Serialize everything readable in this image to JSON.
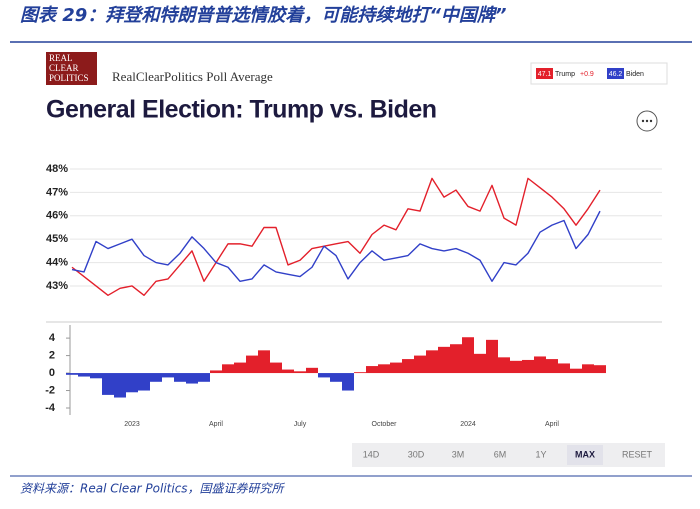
{
  "header": {
    "title": "图表 29：拜登和特朗普普选情胶着，可能持续地打“中国牌”"
  },
  "widget": {
    "logo": [
      "REAL",
      "CLEAR",
      "POLITICS"
    ],
    "label": "RealClearPolitics Poll Average",
    "buttons": [
      "14D",
      "30D",
      "3M",
      "6M",
      "1Y",
      "MAX",
      "RESET"
    ],
    "selected_button": 5
  },
  "chart_data": [
    {
      "type": "line",
      "title": "General Election: Trump vs. Biden",
      "ylim": [
        42.4,
        48.3
      ],
      "yticks": [
        {
          "value": 43,
          "label": "43%"
        },
        {
          "value": 44,
          "label": "44%"
        },
        {
          "value": 45,
          "label": "45%"
        },
        {
          "value": 46,
          "label": "46%"
        },
        {
          "value": 47,
          "label": "47%"
        },
        {
          "value": 48,
          "label": "48%"
        }
      ],
      "grid": true,
      "series": [
        {
          "name": "Trump",
          "color": "#e3202b",
          "legend_value": "47.1",
          "change": "+0.9",
          "values": [
            43.8,
            43.4,
            43.0,
            42.6,
            42.9,
            43.0,
            42.6,
            43.2,
            43.3,
            43.9,
            44.5,
            43.2,
            44.0,
            44.8,
            44.8,
            44.7,
            45.5,
            45.5,
            43.9,
            44.1,
            44.6,
            44.7,
            44.8,
            44.9,
            44.4,
            45.2,
            45.6,
            45.4,
            46.3,
            46.2,
            47.6,
            46.8,
            47.1,
            46.4,
            46.2,
            47.3,
            45.9,
            45.6,
            47.6,
            47.2,
            46.8,
            46.3,
            45.6,
            46.3,
            47.1
          ]
        },
        {
          "name": "Biden",
          "color": "#3140c8",
          "legend_value": "46.2",
          "values": [
            43.7,
            43.6,
            44.9,
            44.6,
            44.8,
            45.0,
            44.3,
            44.0,
            43.9,
            44.4,
            45.1,
            44.6,
            44.0,
            43.8,
            43.2,
            43.3,
            43.9,
            43.6,
            43.5,
            43.4,
            43.8,
            44.7,
            44.3,
            43.3,
            44.0,
            44.5,
            44.1,
            44.2,
            44.3,
            44.8,
            44.6,
            44.5,
            44.6,
            44.4,
            44.1,
            43.2,
            44.0,
            43.9,
            44.4,
            45.3,
            45.6,
            45.8,
            44.6,
            45.2,
            46.2
          ]
        }
      ]
    },
    {
      "type": "bar",
      "categories": [
        null,
        null,
        null,
        null,
        null,
        "2023",
        null,
        null,
        null,
        null,
        null,
        null,
        "April",
        null,
        null,
        null,
        null,
        null,
        null,
        "July",
        null,
        null,
        null,
        null,
        null,
        null,
        "October",
        null,
        null,
        null,
        null,
        null,
        null,
        "2024",
        null,
        null,
        null,
        null,
        null,
        null,
        "April",
        null,
        null,
        null,
        null
      ],
      "values": [
        -0.2,
        -0.4,
        -0.6,
        -2.5,
        -2.8,
        -2.2,
        -2.0,
        -1.0,
        -0.5,
        -1.0,
        -1.2,
        -1.0,
        0.3,
        1.0,
        1.2,
        2.0,
        2.6,
        1.2,
        0.4,
        0.2,
        0.6,
        -0.5,
        -1.0,
        -2.0,
        0.1,
        0.8,
        1.0,
        1.2,
        1.6,
        2.0,
        2.6,
        3.0,
        3.3,
        4.1,
        2.2,
        3.8,
        1.8,
        1.4,
        1.5,
        1.9,
        1.6,
        1.1,
        0.5,
        1.0,
        0.9
      ],
      "ylim": [
        -4.8,
        5.5
      ],
      "yticks": [
        4,
        2,
        0,
        -2,
        -4
      ],
      "colors": {
        "positive": "#e3202b",
        "negative": "#3140c8"
      }
    }
  ],
  "footer": {
    "source": "资料来源：Real Clear Politics，国盛证券研究所"
  }
}
